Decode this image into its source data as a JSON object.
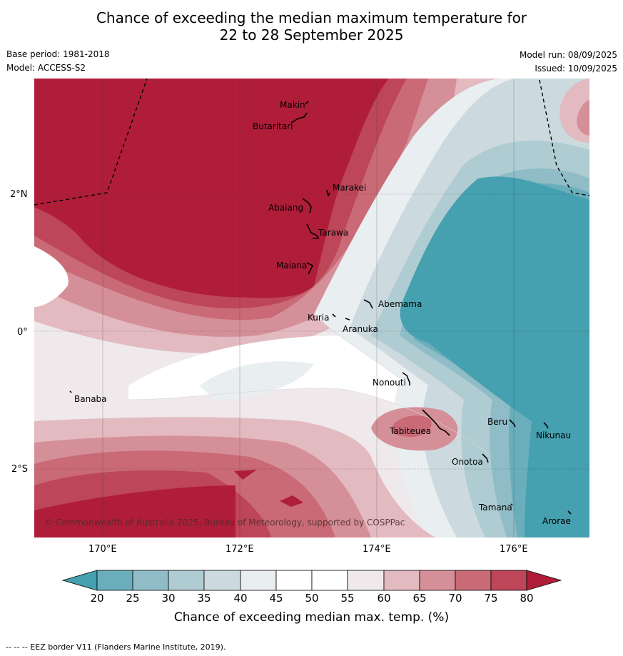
{
  "header": {
    "title_line1": "Chance of exceeding the median maximum temperature for",
    "title_line2": "22 to 28 September 2025",
    "base_period": "Base period: 1981-2018",
    "model": "Model: ACCESS-S2",
    "model_run": "Model run: 08/09/2025",
    "issued": "Issued: 10/09/2025"
  },
  "map": {
    "longitude_labels": [
      "170°E",
      "172°E",
      "174°E",
      "176°E"
    ],
    "latitude_labels": [
      "2°N",
      "0°",
      "2°S"
    ],
    "islands": [
      "Makin",
      "Butaritari",
      "Marakei",
      "Abaiang",
      "Tarawa",
      "Maiana",
      "Abemama",
      "Kuria",
      "Aranuka",
      "Banaba",
      "Nonouti",
      "Tabiteuea",
      "Beru",
      "Nikunau",
      "Onotoa",
      "Tamana",
      "Arorae"
    ],
    "copyright": "© Commonwealth of Australia 2025, Bureau of Meteorology, supported by COSPPac"
  },
  "colorbar": {
    "ticks": [
      "20",
      "25",
      "30",
      "35",
      "40",
      "45",
      "50",
      "55",
      "60",
      "65",
      "70",
      "75",
      "80"
    ],
    "colors": {
      "below20": "#45a0b0",
      "20-25": "#6aaebc",
      "25-30": "#8fbcc6",
      "30-35": "#afccd2",
      "35-40": "#ccdadf",
      "40-45": "#e9eef1",
      "45-50": "#ffffff",
      "50-55": "#ffffff",
      "55-60": "#efe9eb",
      "60-65": "#e2bac0",
      "65-70": "#d58f98",
      "70-75": "#c96a76",
      "75-80": "#bd4658",
      "above80": "#b01d39"
    },
    "label": "Chance of exceeding median max. temp. (%)"
  },
  "footnote": "--  --  -- EEZ border V11 (Flanders Marine Institute, 2019)."
}
